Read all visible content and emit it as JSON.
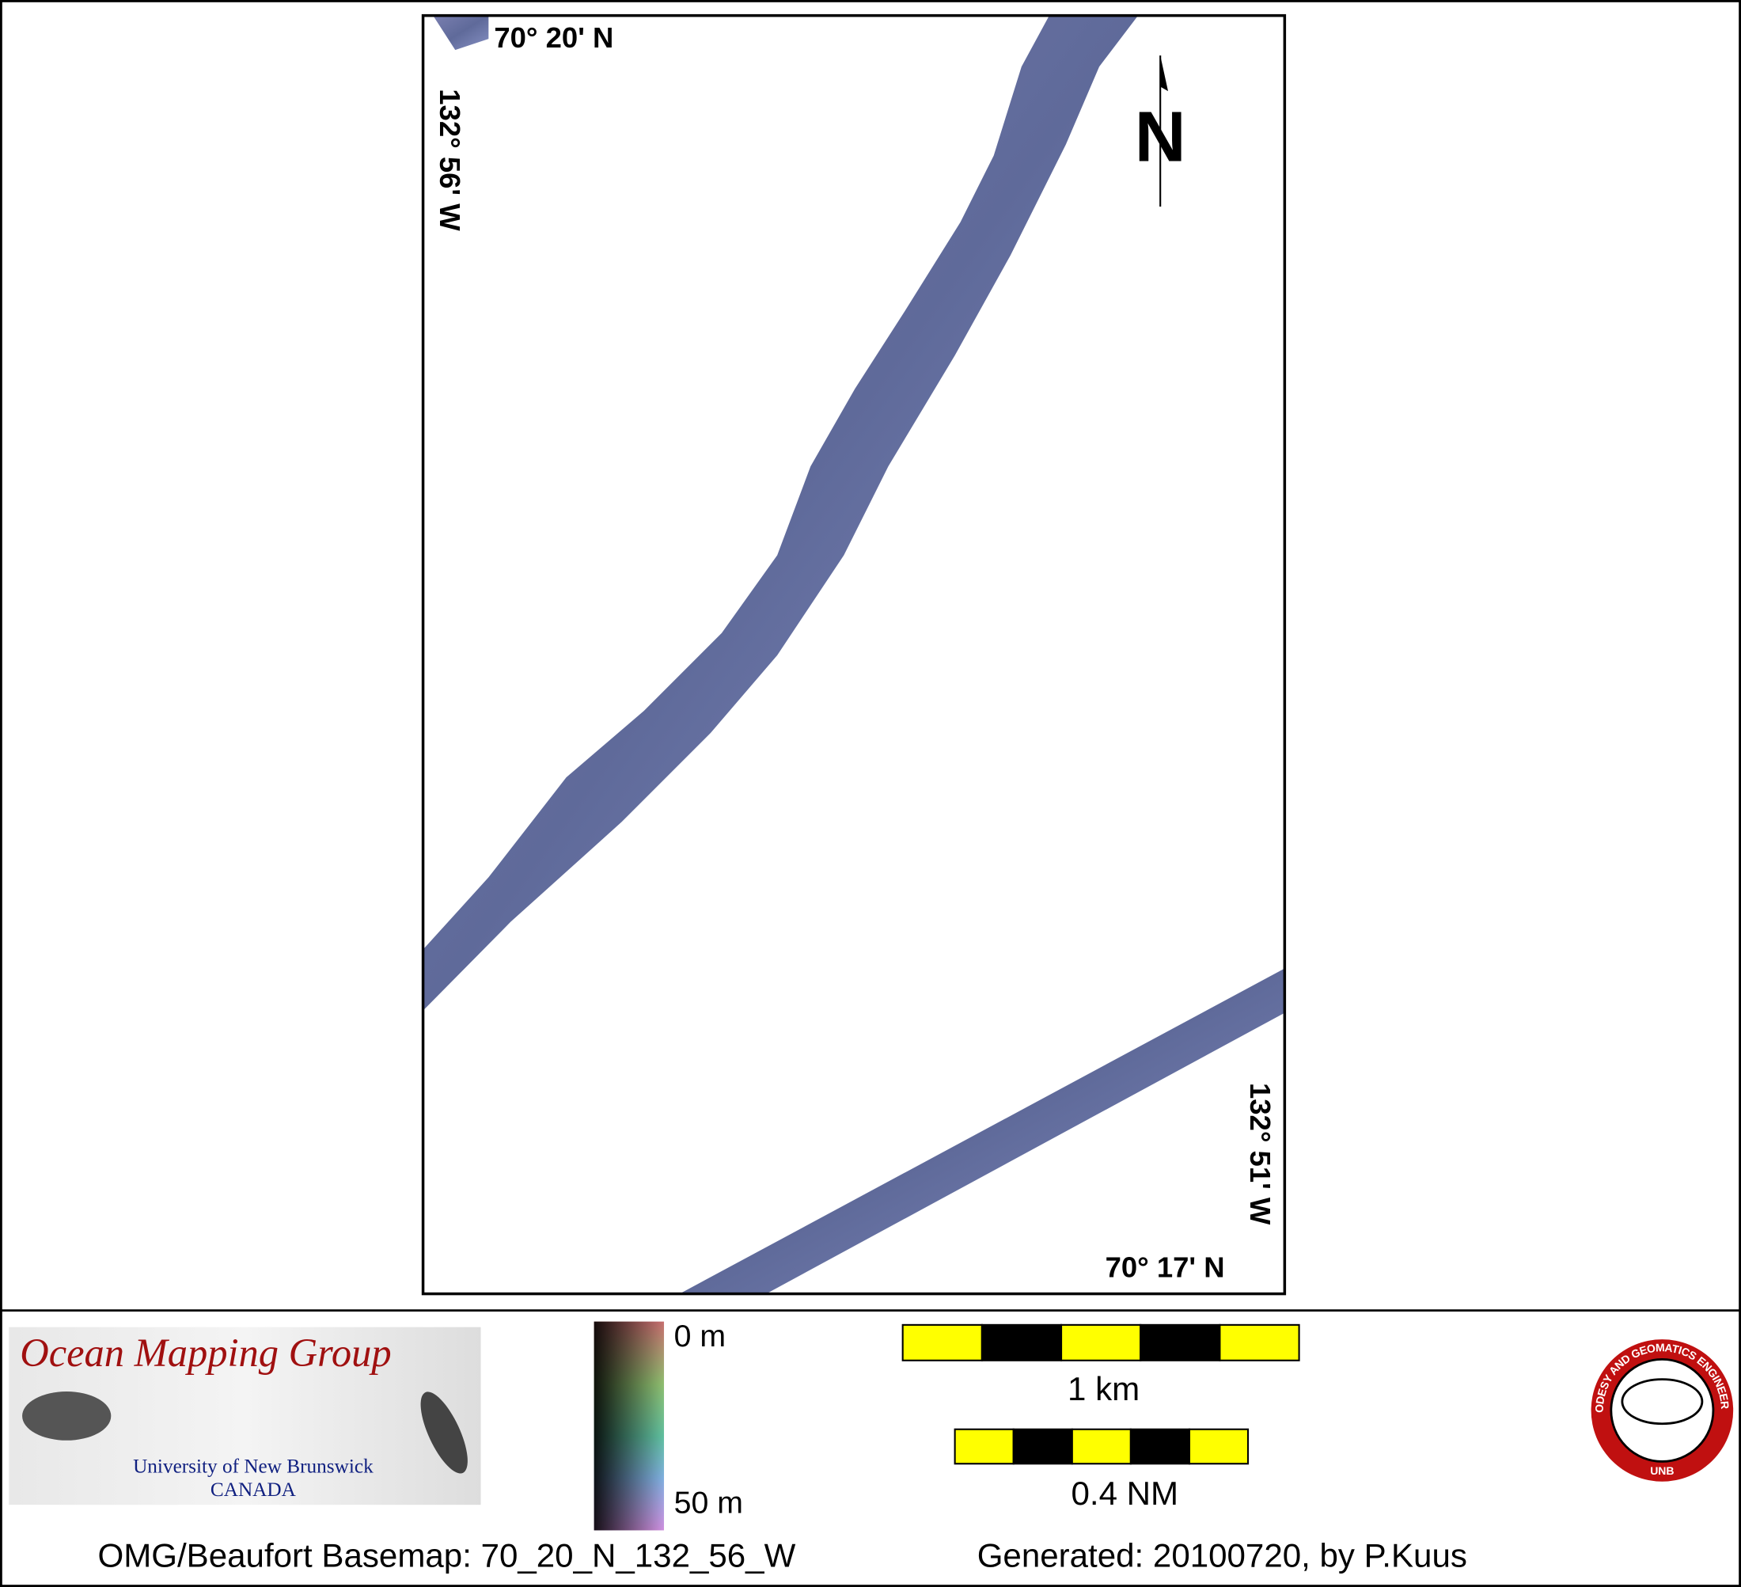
{
  "map": {
    "corners": {
      "top_lat": "70° 20' N",
      "left_lon": "132° 56' W",
      "bottom_lat": "70° 17' N",
      "right_lon": "132° 51' W"
    },
    "north_arrow": "N"
  },
  "footer": {
    "logo": {
      "title": "Ocean Mapping Group",
      "line1": "University of New Brunswick",
      "line2": "CANADA"
    },
    "depth_scale": {
      "top": "0 m",
      "bottom": "50 m"
    },
    "scale_bars": [
      "1 km",
      "0.4 NM"
    ],
    "unb_logo": {
      "ring": "GEODESY AND GEOMATICS ENGINEERING",
      "center": "UNB"
    },
    "caption": {
      "basemap": "OMG/Beaufort Basemap: 70_20_N_132_56_W",
      "generated": "Generated: 20100720, by P.Kuus"
    }
  }
}
